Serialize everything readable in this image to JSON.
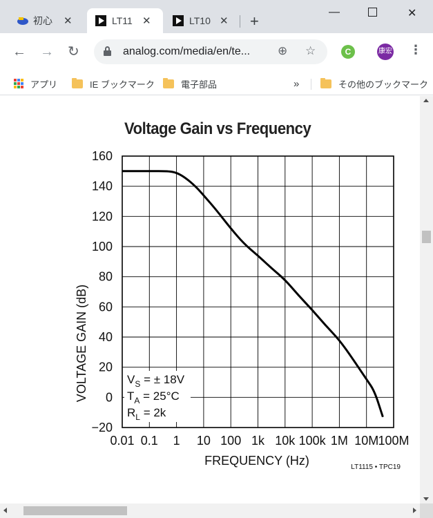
{
  "browser": {
    "tabs": [
      {
        "label": "初心"
      },
      {
        "label": "LT11"
      },
      {
        "label": "LT10"
      }
    ],
    "url": "analog.com/media/en/te...",
    "profile_initials": "康宏",
    "extension_letter": "C",
    "bookmarks": {
      "apps": "アプリ",
      "items": [
        "IE ブックマーク",
        "電子部品"
      ],
      "overflow": "»",
      "other": "その他のブックマーク"
    }
  },
  "colors": {
    "tabstrip": "#dee1e6",
    "omnibox": "#f1f3f4",
    "curve": "#000000",
    "avatar": "#7b2aa3",
    "extension": "#6cc04a"
  },
  "chart_data": {
    "type": "line",
    "title": "Voltage Gain vs Frequency",
    "xlabel": "FREQUENCY (Hz)",
    "ylabel": "VOLTAGE GAIN (dB)",
    "x_scale": "log",
    "xlim": [
      0.01,
      100000000
    ],
    "ylim": [
      -20,
      160
    ],
    "x_ticks": [
      "0.01",
      "0.1",
      "1",
      "10",
      "100",
      "1k",
      "10k",
      "100k",
      "1M",
      "10M",
      "100M"
    ],
    "y_ticks": [
      "160",
      "140",
      "120",
      "100",
      "80",
      "60",
      "40",
      "20",
      "0",
      "−20"
    ],
    "grid": true,
    "series": [
      {
        "x": [
          0.01,
          0.1,
          0.5,
          1,
          2,
          5,
          10,
          30,
          100,
          300,
          1000,
          3000,
          10000,
          30000,
          100000,
          300000,
          1000000,
          3000000,
          10000000,
          20000000,
          40000000
        ],
        "y": [
          150,
          150,
          150,
          149,
          146,
          140,
          134,
          124,
          112,
          102,
          94,
          86,
          78,
          68,
          58,
          48,
          38,
          26,
          12,
          4,
          -13
        ]
      }
    ],
    "conditions": [
      {
        "main": "V",
        "sub": "S",
        "rest": " = ± 18V"
      },
      {
        "main": "T",
        "sub": "A",
        "rest": " = 25°C"
      },
      {
        "main": "R",
        "sub": "L",
        "rest": " = 2k"
      }
    ],
    "part_code": "LT1115 • TPC19"
  }
}
